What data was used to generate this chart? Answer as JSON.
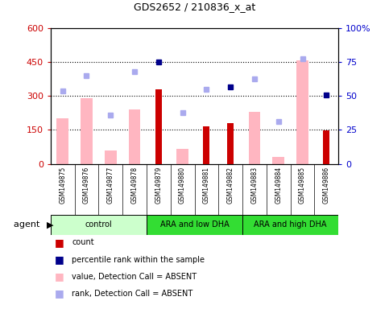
{
  "title": "GDS2652 / 210836_x_at",
  "samples": [
    "GSM149875",
    "GSM149876",
    "GSM149877",
    "GSM149878",
    "GSM149879",
    "GSM149880",
    "GSM149881",
    "GSM149882",
    "GSM149883",
    "GSM149884",
    "GSM149885",
    "GSM149886"
  ],
  "groups": [
    {
      "label": "control",
      "start": 0,
      "end": 4,
      "color": "#ccffcc"
    },
    {
      "label": "ARA and low DHA",
      "start": 4,
      "end": 8,
      "color": "#33dd33"
    },
    {
      "label": "ARA and high DHA",
      "start": 8,
      "end": 12,
      "color": "#33dd33"
    }
  ],
  "count_values": [
    null,
    null,
    null,
    null,
    330,
    null,
    165,
    180,
    null,
    null,
    null,
    148
  ],
  "count_color": "#cc0000",
  "absent_value_bars": [
    200,
    290,
    60,
    240,
    null,
    65,
    null,
    null,
    230,
    30,
    455,
    null
  ],
  "absent_value_color": "#ffb6c1",
  "percentile_rank_points": [
    null,
    null,
    null,
    null,
    75,
    null,
    null,
    56.5,
    null,
    null,
    null,
    50.8
  ],
  "percentile_rank_color": "#00008b",
  "absent_rank_points": [
    53.3,
    65.0,
    35.8,
    67.5,
    null,
    37.5,
    55.0,
    null,
    62.5,
    30.8,
    77.5,
    null
  ],
  "absent_rank_color": "#aaaaee",
  "ylim_left": [
    0,
    600
  ],
  "ylim_right": [
    0,
    100
  ],
  "yticks_left": [
    0,
    150,
    300,
    450,
    600
  ],
  "ytick_labels_left": [
    "0",
    "150",
    "300",
    "450",
    "600"
  ],
  "yticks_right": [
    0,
    25,
    50,
    75,
    100
  ],
  "ytick_labels_right": [
    "0",
    "25",
    "50",
    "75",
    "100%"
  ],
  "left_axis_color": "#cc0000",
  "right_axis_color": "#0000cc",
  "background_color": "#ffffff",
  "xtick_bg_color": "#d3d3d3",
  "agent_label": "agent",
  "legend_items": [
    {
      "color": "#cc0000",
      "label": "count"
    },
    {
      "color": "#00008b",
      "label": "percentile rank within the sample"
    },
    {
      "color": "#ffb6c1",
      "label": "value, Detection Call = ABSENT"
    },
    {
      "color": "#aaaaee",
      "label": "rank, Detection Call = ABSENT"
    }
  ]
}
